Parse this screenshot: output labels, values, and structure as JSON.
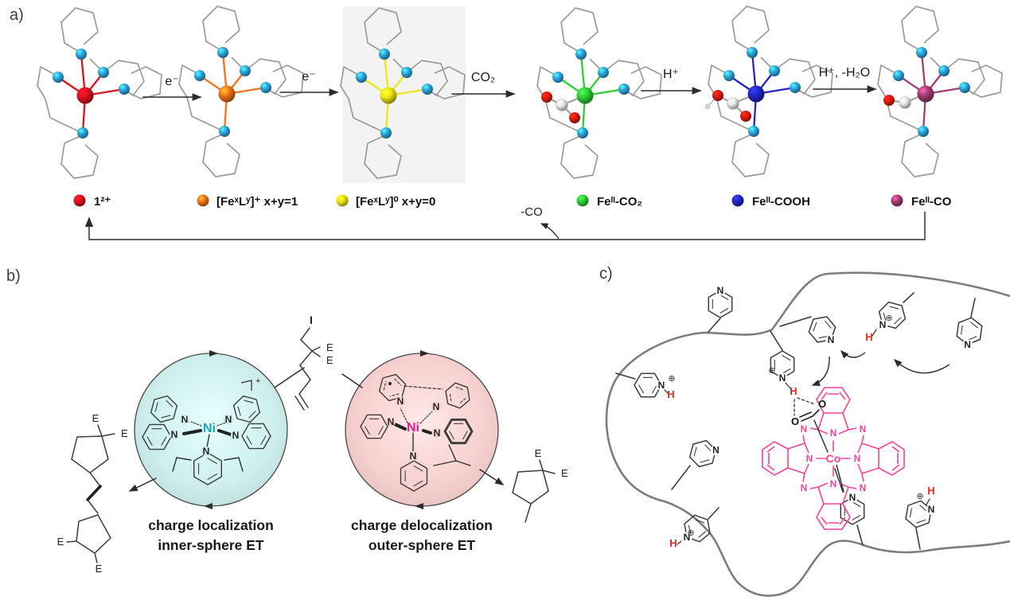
{
  "figure": {
    "description": "three-panel chemistry scheme"
  },
  "panels": {
    "a": {
      "label": "a)",
      "arrows": [
        {
          "label": "e⁻"
        },
        {
          "label": "e⁻"
        },
        {
          "label": "CO₂"
        },
        {
          "label": "H⁺"
        },
        {
          "label": "H⁺, -H₂O"
        }
      ],
      "species": [
        {
          "legend": "1²⁺",
          "color": "#e2101f",
          "ligand": "none"
        },
        {
          "legend": "[FeˣLʸ]⁺ x+y=1",
          "color": "#f2741c",
          "ligand": "none"
        },
        {
          "legend": "[FeˣLʸ]⁰ x+y=0",
          "color": "#ece714",
          "ligand": "none"
        },
        {
          "legend": "Feᴵᴵ-CO₂",
          "color": "#2fcf35",
          "ligand": "co2"
        },
        {
          "legend": "Feᴵᴵ-COOH",
          "color": "#2327c9",
          "ligand": "cooh"
        },
        {
          "legend": "Feᴵᴵ-CO",
          "color": "#a43b72",
          "ligand": "co"
        }
      ],
      "release_label": "-CO",
      "nitrogen_color": "#2ea7e0",
      "oxygen_color": "#e01c10",
      "carbon_sphere_color": "#e9e9e9",
      "skeleton_color": "#9b9b9b"
    },
    "b": {
      "label": "b)",
      "atom_n": "N",
      "ester_label": "E",
      "iodide_label": "I",
      "left_circle": {
        "metal": "Ni",
        "metal_color": "#17a6b5",
        "fill": "#cdeeec",
        "charge": "+",
        "caption_line1": "charge localization",
        "caption_line2": "inner-sphere ET"
      },
      "right_circle": {
        "metal": "Ni",
        "metal_color": "#ec168c",
        "fill": "#f6d0ce",
        "radical": "•",
        "caption_line1": "charge delocalization",
        "caption_line2": "outer-sphere ET"
      }
    },
    "c": {
      "label": "c)",
      "metal": "Co",
      "atom_n": "N",
      "proton_label": "H",
      "oxygen_label": "O",
      "plus_symbol": "⊕",
      "pc_color": "#f5429d",
      "proton_color": "#e62a21",
      "polymer_color": "#7d7d7d",
      "pyridines": [
        {
          "id": "top-left",
          "protonated": false
        },
        {
          "id": "top-middle",
          "protonated": false
        },
        {
          "id": "top-right",
          "protonated": true
        },
        {
          "id": "far-right",
          "protonated": false
        },
        {
          "id": "left",
          "protonated": true
        },
        {
          "id": "center-hbond-donor",
          "protonated": true
        },
        {
          "id": "mid-left",
          "protonated": false
        },
        {
          "id": "bottom-left",
          "protonated": true
        },
        {
          "id": "axial-co-bound",
          "protonated": false
        },
        {
          "id": "bottom-right",
          "protonated": true
        }
      ]
    }
  }
}
